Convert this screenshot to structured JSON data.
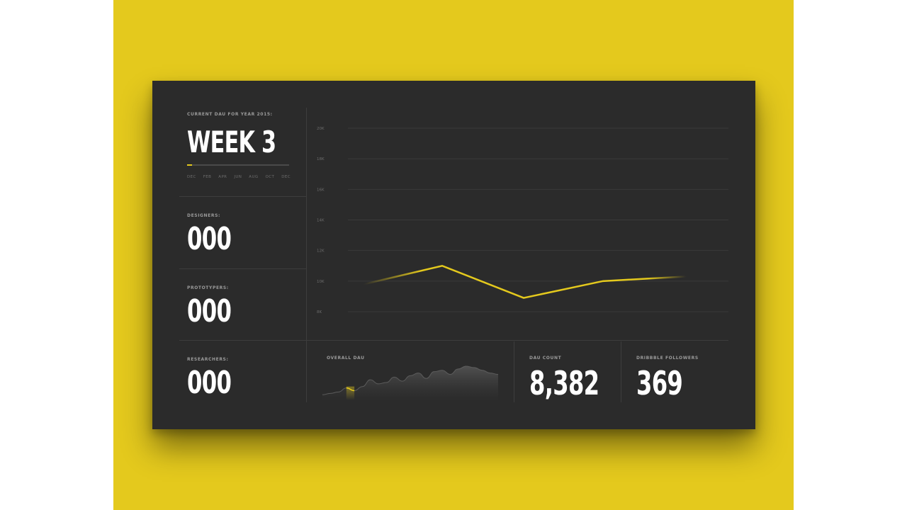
{
  "week_panel": {
    "label": "CURRENT DAU FOR YEAR 2015:",
    "title": "WEEK 3",
    "progress": 0.05,
    "months": [
      "DEC",
      "FEB",
      "APR",
      "JUN",
      "AUG",
      "OCT",
      "DEC"
    ]
  },
  "stats": [
    {
      "label": "DESIGNERS:",
      "value": "000"
    },
    {
      "label": "PROTOTYPERS:",
      "value": "000"
    },
    {
      "label": "RESEARCHERS:",
      "value": "000"
    }
  ],
  "overall": {
    "label": "OVERALL DAU",
    "series": [
      3,
      4,
      5,
      8,
      6,
      9,
      14,
      11,
      12,
      16,
      13,
      17,
      19,
      15,
      20,
      21,
      18,
      22,
      24,
      23,
      21,
      19,
      18
    ],
    "highlight_range": [
      3,
      4
    ]
  },
  "dau_count": {
    "label": "DAU COUNT",
    "value": "8,382"
  },
  "dribbble": {
    "label": "DRIBBBLE FOLLOWERS",
    "value": "369"
  },
  "colors": {
    "accent": "#e4c91d",
    "panel": "#2b2b2b",
    "background": "#e4c91d"
  },
  "chart_data": {
    "type": "line",
    "ytick_labels": [
      "20K",
      "18K",
      "16K",
      "14K",
      "12K",
      "10K",
      "8K"
    ],
    "ylim": [
      8000,
      20000
    ],
    "series": [
      {
        "values": [
          9800,
          11000,
          8900,
          10000,
          10300
        ]
      }
    ],
    "grid": true
  }
}
